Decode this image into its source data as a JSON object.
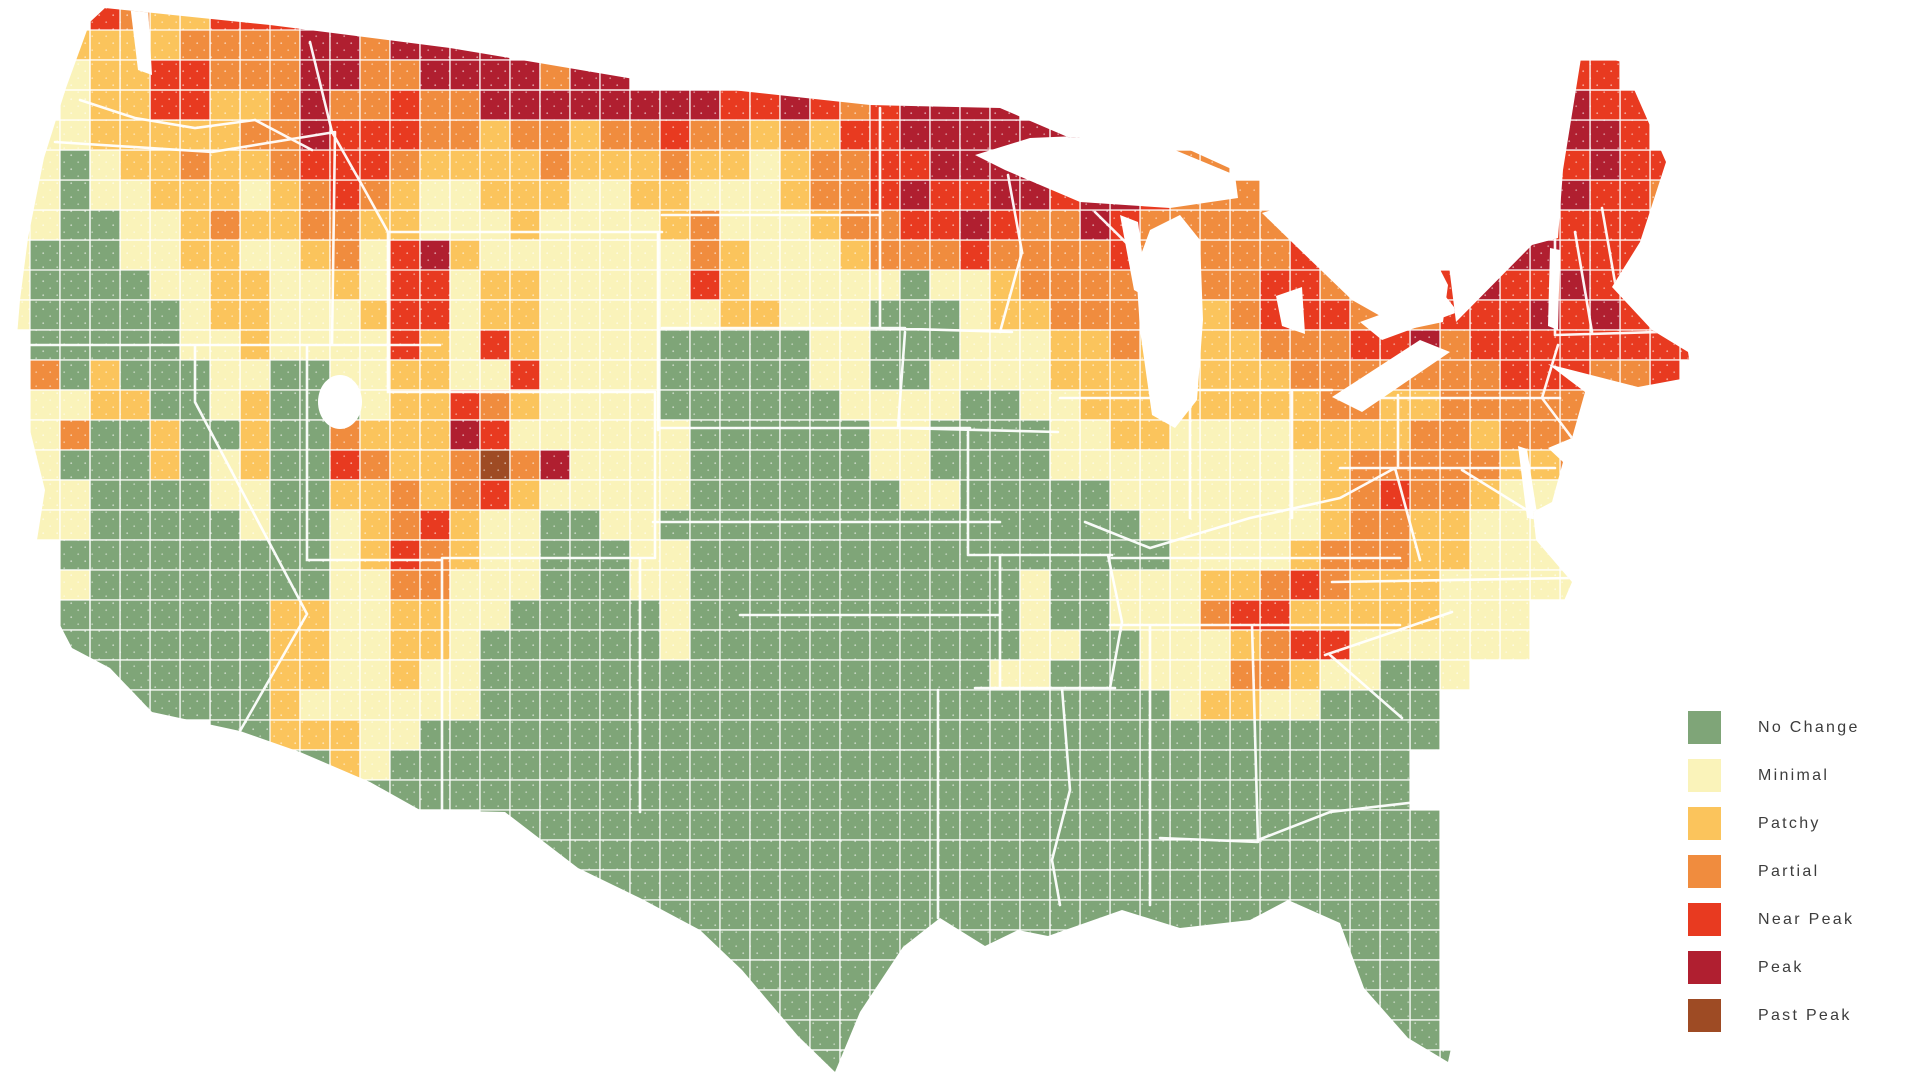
{
  "legend": {
    "items": [
      {
        "key": "G",
        "label": "No Change",
        "color": "#7FA578"
      },
      {
        "key": "M",
        "label": "Minimal",
        "color": "#FAF3BA"
      },
      {
        "key": "C",
        "label": "Patchy",
        "color": "#FBC45C"
      },
      {
        "key": "P",
        "label": "Partial",
        "color": "#F08C3E"
      },
      {
        "key": "N",
        "label": "Near Peak",
        "color": "#E83A20"
      },
      {
        "key": "K",
        "label": "Peak",
        "color": "#B01F30"
      },
      {
        "key": "X",
        "label": "Past Peak",
        "color": "#9E4B24"
      }
    ]
  },
  "map": {
    "palette": {
      "G": "#7FA578",
      "M": "#FAF3BA",
      "C": "#FBC45C",
      "P": "#F08C3E",
      "N": "#E83A20",
      "K": "#B01F30",
      "X": "#9E4B24"
    },
    "grid": {
      "cols": 64,
      "rows": 36,
      "cells": [
        "...NPCCNNNKKK",
        "..CCCCPPPPKKPKKKK",
        "..MCCNNPPPKKPPKKKKPKK...............................NN",
        "..MCCNNCCPKPPNPPKKKKKKKKNNKNPNKKKK.................NKNN",
        ".MMCCCCCPPKNNNPPCPPCPPNPPCPCNNKKKKKK...............NKKN",
        ".MGMCCPCCPNNNPCCCCPCCCPCCMCPPNNKKKKKNNPPP..........NNKNN",
        ".MGMMCCCMCPNPCMMCCCMMCCMMMCPPNKNNKKNKKNPPP........NNKNNP",
        "MMGGMMCPCCPPCCMMMCMMMMCPMMMCPPNNKNPPKNPPPPPPP....NKNNNNP",
        "MGGGMMCCMMCPMNKCMMMMMMMPCMMMCPPPNPPPPNPPPPPNNNP..NKKNNNN",
        "MGGGGMMCCMMCMNNMCCMMMMMNCMMMMMGMMCPPPPPPPPNNPPNNNKNNKNNN",
        "MGGGGGMCCMMMCNNMCCMMMMMMCCMMMGGGMCCPPPCCCPNNNPPPNNNKNKNN",
        ".GGGGGMMCMMMMNCMNCMMMMGGGGGMMGGGMMMCCPCCCCPPPNNKPNNNNNNNN",
        ".PGCGGGMMGGMMCCMMNMMMMGGGGGMMGGMMMMCCCCCCCCPPPPPPPNNNPPN",
        ".MMCCGGMCGGGMCCNPCMMMMGGGGGGMMMMGGMMCCCCCCCCPPCCPPPPP",
        ".MPGGCGGCGGPCCCKNMMMMMMGGGGGGMMGGGGMMCCMMMMCCCCPPCPPP",
        "MMGGGCGMCGGNPCCPXPKMMMMGGGGGGMMGGGGMMMMMMMMMCPPPPPCCP",
        ".MMGGGGMMGGCCPCPNCMMMMMGGGGGGGMMGGGGGMMMMMMMCPNPPCMMC",
        ".MMGGGGGMGGMCPNCMMGGMMGGGGGGGGGGGGGGGGMMMMMMCPPCCMMM",
        "..GGGGGGGGGMCNPCMMGGGMMGGGGGGGGGGGGGGGGMMMMCPPPCCMMMM",
        "..MGGGGGGGGMMPPMMMGGGMMGGGGGGGGGGGMGGMMMCCPNPCCCMMMMM",
        "..GGGGGGGCCMMCCMMGGGGGMGGGGGGGGGGGMGGMMMPNNCCCCCMMM",
        "..GGGGGGGCCMMCCMGGGGGGMGGGGGGGGGGGMMGGMMMCPNNMMMMMM",
        "..GGGGGGGCCMMCMMGGGGGGGGGGGGGGGGGMMGGGMMMPPCMMGGM",
        "..GGGGGGGCMMMMMMGGGGGGGGGGGGGGGGGGGGGGGMCCMMGGGG",
        ".......GGCCCMMGGGGGGGGGGGGGGGGGGGGGGGGGGGGGGGGGG",
        ".........GGCMGGGGGGGGGGGGGGGGGGGGGGGGGGGGGGGGGG",
        "..........GGGGGGGGGGGGGGGGGGGGGGGGGGGGGGGGGGGGG",
        "................GGGGGGGGGGGGGGGGGGGGGGGGGGGGGGGG",
        ".................GGGGGGGGGGGGGGGGGGGGGGGGGGGGGGG",
        "..................GGGGGGGGGGGGGGGGGGGGGGGGGGGGGG",
        "...................GGGGGGGGGGGGGGGGGGGGGGGGGGGGG",
        "....................GGGGGGGGGGGGGGGGGGGGGGGGGGGG",
        ".....................GGGGGGGGGGGGGGGGGGGGGGGGGGG",
        "......................GGGGGGGGGGGGGGGGGGGGGGGGGG",
        "........................GGGGGGGGGGGGGGGGGGGGGGGG",
        ".........................GGGG................GGGG"
      ]
    }
  }
}
